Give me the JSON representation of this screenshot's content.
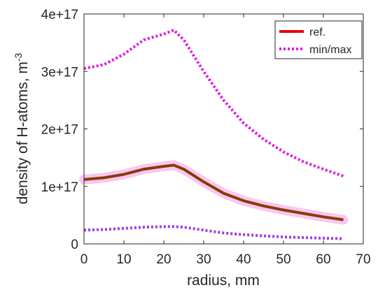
{
  "chart_data": {
    "type": "line",
    "title": "",
    "xlabel": "radius, mm",
    "ylabel_main": "density of H-atoms, m",
    "ylabel_sup": "-3",
    "xlim": [
      0,
      70
    ],
    "ylim": [
      0,
      4e+17
    ],
    "xticks": [
      0,
      10,
      20,
      30,
      40,
      50,
      60,
      70
    ],
    "yticks": [
      0,
      1e+17,
      2e+17,
      3e+17,
      4e+17
    ],
    "ytick_labels": [
      "0",
      "1e+17",
      "2e+17",
      "3e+17",
      "4e+17"
    ],
    "grid": false,
    "legend": {
      "position": "top-right",
      "entries": [
        {
          "label": "ref.",
          "style": "solid",
          "color": "#e8000b"
        },
        {
          "label": "min/max",
          "style": "dotted",
          "color": "#e21ae2"
        }
      ]
    },
    "series": [
      {
        "name": "ref.",
        "style": "solid",
        "color": "#8b3a00",
        "x": [
          0,
          5,
          10,
          15,
          20,
          22.5,
          25,
          30,
          35,
          40,
          45,
          50,
          55,
          60,
          65
        ],
        "y": [
          1.12e+17,
          1.15e+17,
          1.21e+17,
          1.3e+17,
          1.35e+17,
          1.37e+17,
          1.3e+17,
          1.08e+17,
          8.8e+16,
          7.5e+16,
          6.6e+16,
          5.9e+16,
          5.3e+16,
          4.7e+16,
          4.2e+16
        ]
      },
      {
        "name": "max",
        "style": "dotted",
        "color": "#e21ae2",
        "x": [
          0,
          5,
          10,
          15,
          20,
          22.5,
          25,
          30,
          35,
          40,
          45,
          50,
          55,
          60,
          65
        ],
        "y": [
          3.05e+17,
          3.12e+17,
          3.3e+17,
          3.55e+17,
          3.65e+17,
          3.72e+17,
          3.55e+17,
          3e+17,
          2.5e+17,
          2.1e+17,
          1.82e+17,
          1.6e+17,
          1.43e+17,
          1.3e+17,
          1.18e+17
        ]
      },
      {
        "name": "min",
        "style": "dotted",
        "color": "#9b3de6",
        "x": [
          0,
          5,
          10,
          15,
          20,
          22.5,
          25,
          30,
          35,
          40,
          45,
          50,
          55,
          60,
          65
        ],
        "y": [
          2.4e+16,
          2.5e+16,
          2.7e+16,
          2.9e+16,
          3e+16,
          3e+16,
          2.9e+16,
          2.4e+16,
          1.9e+16,
          1.6e+16,
          1.4e+16,
          1.2e+16,
          1.1e+16,
          1e+16,
          9000000000000000.0
        ]
      }
    ]
  }
}
